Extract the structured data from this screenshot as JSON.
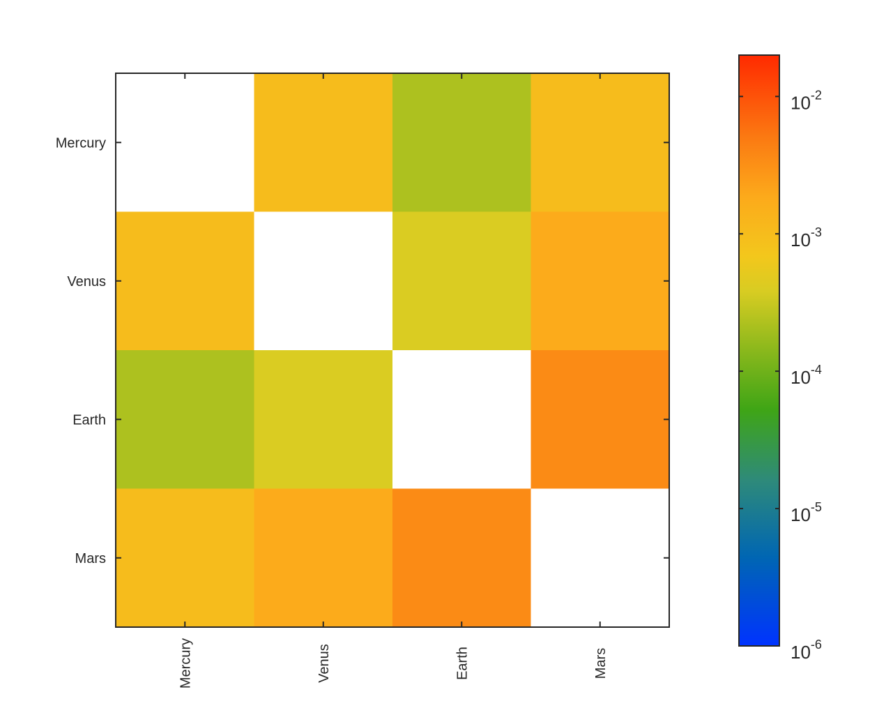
{
  "chart_data": {
    "type": "heatmap",
    "title": "",
    "xlabel": "",
    "ylabel": "",
    "x_categories": [
      "Mercury",
      "Venus",
      "Earth",
      "Mars"
    ],
    "y_categories": [
      "Mercury",
      "Venus",
      "Earth",
      "Mars"
    ],
    "values": [
      [
        null,
        0.001,
        0.00022,
        0.001
      ],
      [
        0.001,
        null,
        0.0004,
        0.0018
      ],
      [
        0.00022,
        0.0004,
        null,
        0.0035
      ],
      [
        0.001,
        0.0018,
        0.0035,
        null
      ]
    ],
    "missing_color": "#ffffff",
    "colorbar": {
      "scale": "log",
      "range": [
        1e-06,
        0.02
      ],
      "ticks": [
        {
          "value": 1e-06,
          "base": "10",
          "exp": "-6"
        },
        {
          "value": 1e-05,
          "base": "10",
          "exp": "-5"
        },
        {
          "value": 0.0001,
          "base": "10",
          "exp": "-4"
        },
        {
          "value": 0.001,
          "base": "10",
          "exp": "-3"
        },
        {
          "value": 0.01,
          "base": "10",
          "exp": "-2"
        }
      ],
      "colormap": [
        [
          0.0,
          "#0033ff"
        ],
        [
          0.15,
          "#0066b3"
        ],
        [
          0.28,
          "#2e8a7a"
        ],
        [
          0.4,
          "#3fa516"
        ],
        [
          0.5,
          "#8ab81c"
        ],
        [
          0.6,
          "#d8cc22"
        ],
        [
          0.66,
          "#f3c71c"
        ],
        [
          0.76,
          "#fcaa1b"
        ],
        [
          0.86,
          "#fb7a12"
        ],
        [
          1.0,
          "#ff2a00"
        ]
      ]
    }
  }
}
